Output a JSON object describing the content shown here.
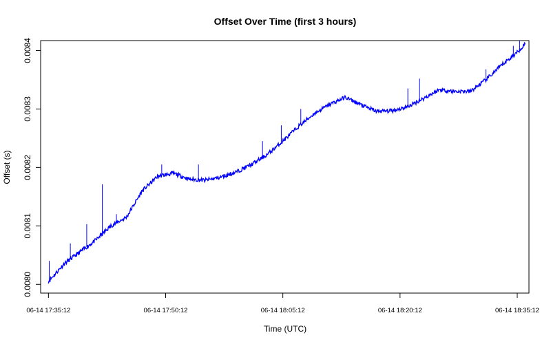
{
  "chart_data": {
    "type": "line",
    "title": "Offset Over Time (first 3 hours)",
    "xlabel": "Time (UTC)",
    "ylabel": "Offset (s)",
    "x_tick_labels": [
      "06-14 17:35:12",
      "06-14 17:50:12",
      "06-14 18:05:12",
      "06-14 18:20:12",
      "06-14 18:35:12"
    ],
    "y_tick_labels": [
      "0.0080",
      "0.0081",
      "0.0082",
      "0.0083",
      "0.0084"
    ],
    "y_ticks": [
      0.008,
      0.0081,
      0.0082,
      0.0083,
      0.0084
    ],
    "xlim_minutes": [
      -1.0,
      61.5
    ],
    "ylim": [
      0.007985,
      0.008417
    ],
    "grid": false,
    "series": [
      {
        "color": "#0000ff",
        "x_minutes": [
          0,
          2,
          4,
          6,
          8,
          10,
          12,
          14,
          16,
          18,
          20,
          22,
          24,
          26,
          28,
          30,
          32,
          34,
          36,
          38,
          40,
          42,
          44,
          46,
          48,
          50,
          52,
          54,
          56,
          58,
          60,
          61
        ],
        "values": [
          0.008005,
          0.008035,
          0.008055,
          0.008075,
          0.0081,
          0.008115,
          0.00816,
          0.008185,
          0.00819,
          0.00818,
          0.008178,
          0.008183,
          0.008192,
          0.008205,
          0.008222,
          0.008245,
          0.00827,
          0.008292,
          0.008308,
          0.00832,
          0.008307,
          0.008296,
          0.008297,
          0.008304,
          0.008318,
          0.008333,
          0.00833,
          0.00833,
          0.00835,
          0.008375,
          0.008397,
          0.008412
        ],
        "spikes": [
          {
            "x_minutes": 0.1,
            "value": 0.00804
          },
          {
            "x_minutes": 2.8,
            "value": 0.00807
          },
          {
            "x_minutes": 4.9,
            "value": 0.008103
          },
          {
            "x_minutes": 6.9,
            "value": 0.008171
          },
          {
            "x_minutes": 8.7,
            "value": 0.00812
          },
          {
            "x_minutes": 14.5,
            "value": 0.008205
          },
          {
            "x_minutes": 19.2,
            "value": 0.008205
          },
          {
            "x_minutes": 27.4,
            "value": 0.008245
          },
          {
            "x_minutes": 29.8,
            "value": 0.008272
          },
          {
            "x_minutes": 32.3,
            "value": 0.0083
          },
          {
            "x_minutes": 46.0,
            "value": 0.008335
          },
          {
            "x_minutes": 47.5,
            "value": 0.008352
          },
          {
            "x_minutes": 56.0,
            "value": 0.008368
          },
          {
            "x_minutes": 59.5,
            "value": 0.008408
          },
          {
            "x_minutes": 60.3,
            "value": 0.008417
          }
        ]
      }
    ]
  }
}
